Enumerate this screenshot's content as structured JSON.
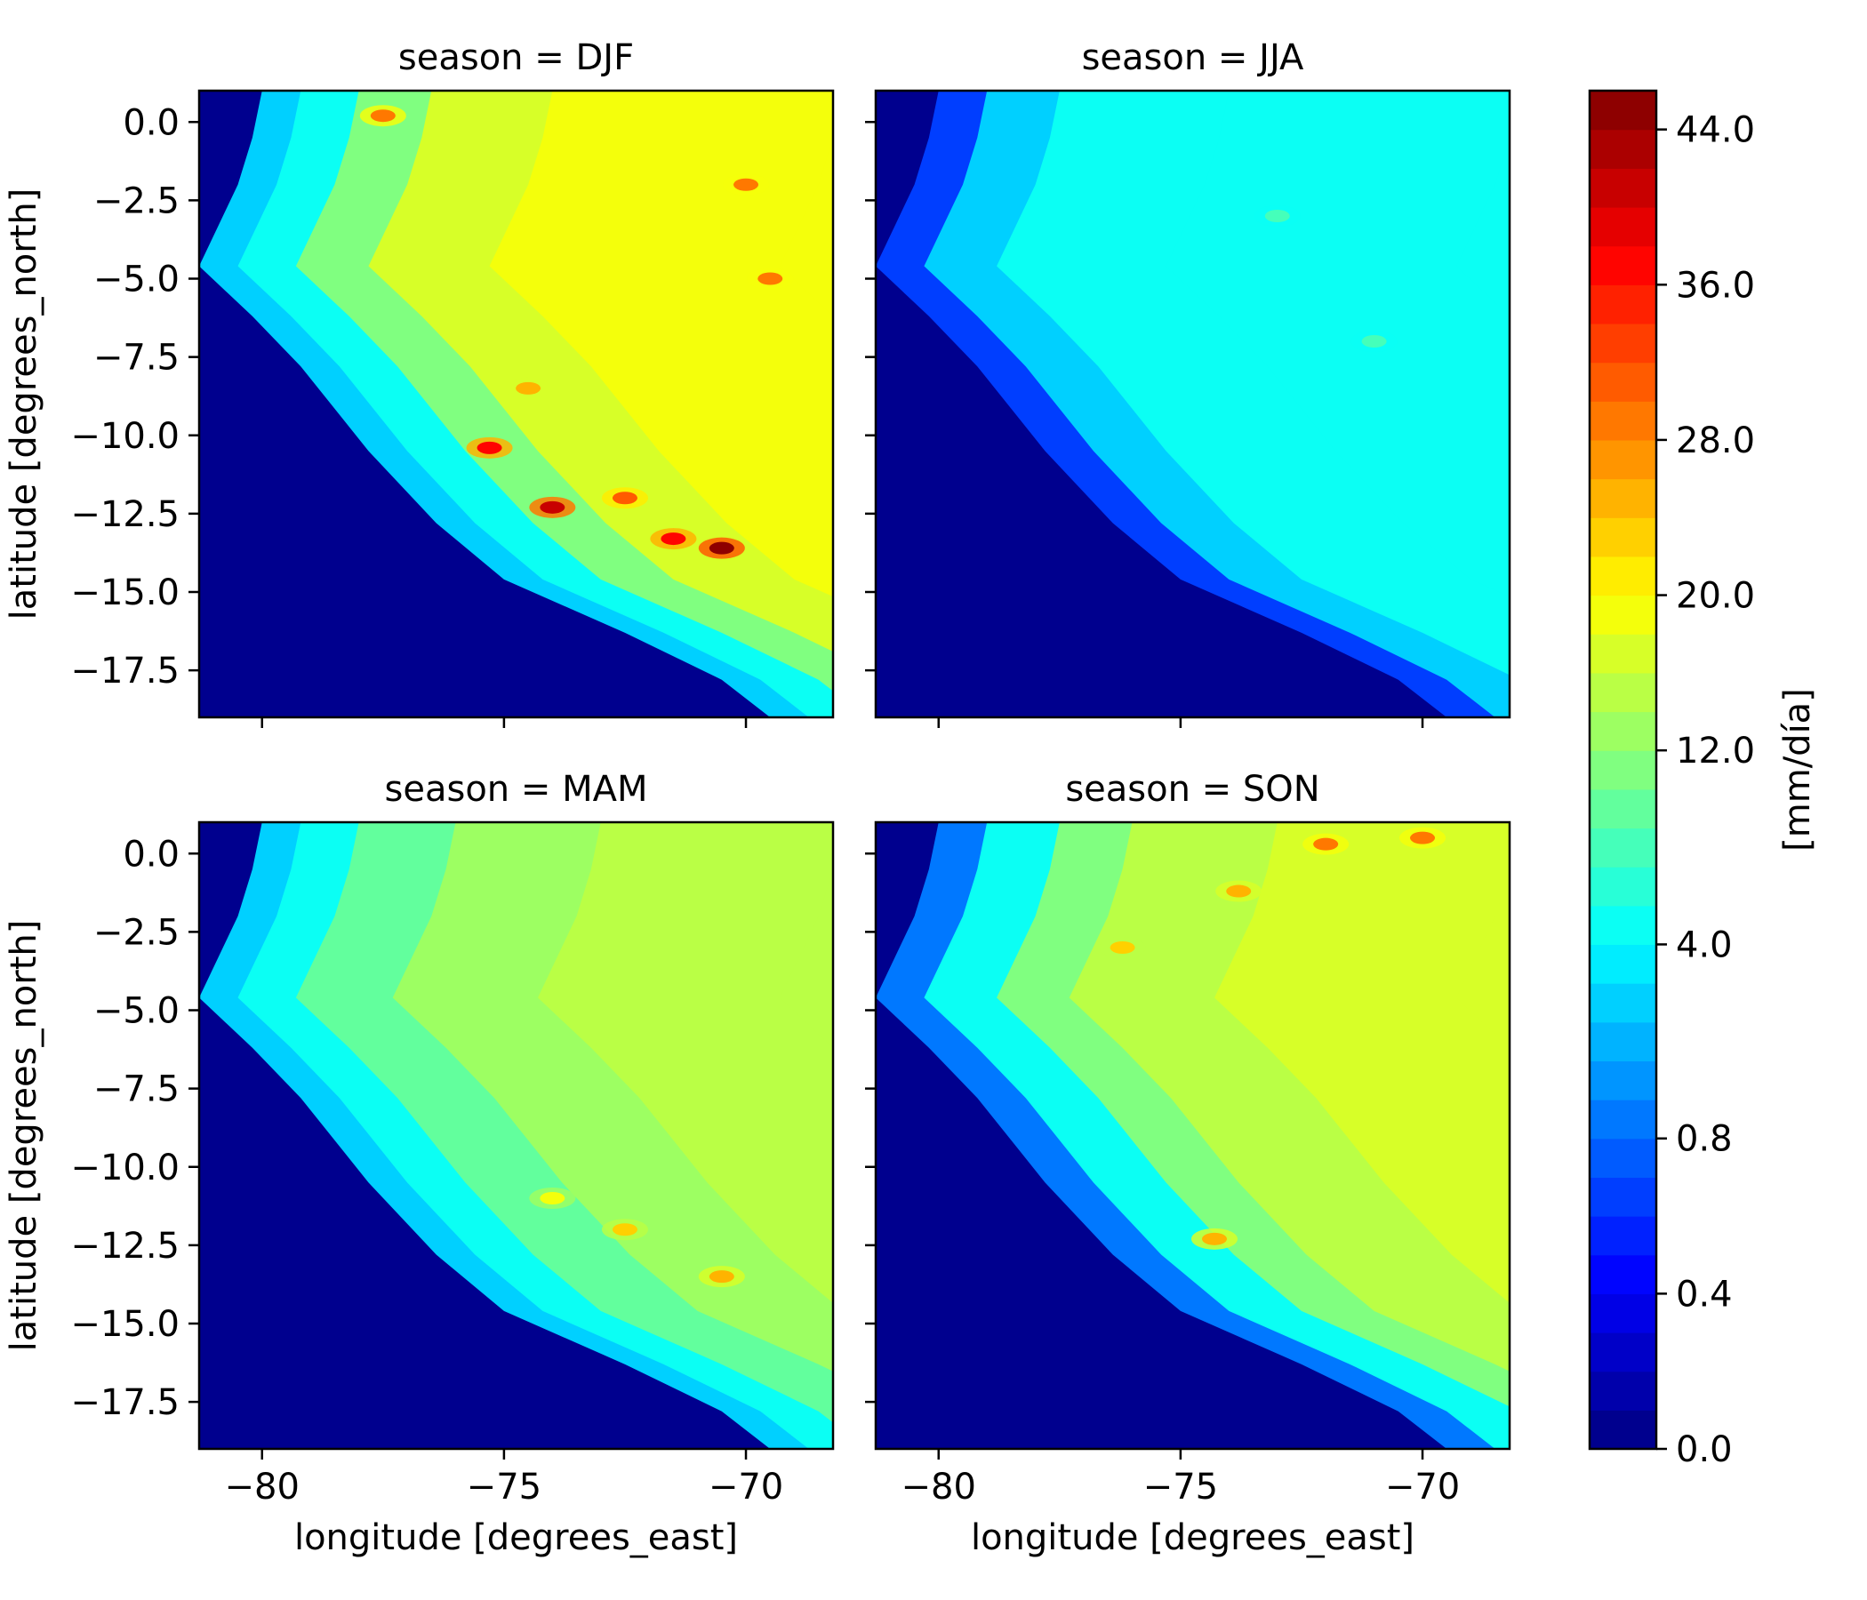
{
  "chart_data": {
    "type": "heatmap",
    "layout": "facet-grid",
    "facet_variable": "season",
    "xlabel": "longitude [degrees_east]",
    "ylabel": "latitude [degrees_north]",
    "xlim": [
      -81.3,
      -68.2
    ],
    "ylim": [
      -19.0,
      1.0
    ],
    "xticks": [
      -80,
      -75,
      -70
    ],
    "xtick_labels": [
      "−80",
      "−75",
      "−70"
    ],
    "yticks": [
      0.0,
      -2.5,
      -5.0,
      -7.5,
      -10.0,
      -12.5,
      -15.0,
      -17.5
    ],
    "ytick_labels": [
      "0.0",
      "−2.5",
      "−5.0",
      "−7.5",
      "−10.0",
      "−12.5",
      "−15.0",
      "−17.5"
    ],
    "coastline": [
      {
        "lon": -80.0,
        "lat": 1.0
      },
      {
        "lon": -80.2,
        "lat": -0.5
      },
      {
        "lon": -80.5,
        "lat": -2.0
      },
      {
        "lon": -81.3,
        "lat": -4.6
      },
      {
        "lon": -80.2,
        "lat": -6.2
      },
      {
        "lon": -79.2,
        "lat": -7.8
      },
      {
        "lon": -77.8,
        "lat": -10.5
      },
      {
        "lon": -76.4,
        "lat": -12.8
      },
      {
        "lon": -75.0,
        "lat": -14.6
      },
      {
        "lon": -72.5,
        "lat": -16.3
      },
      {
        "lon": -70.5,
        "lat": -17.8
      },
      {
        "lon": -69.5,
        "lat": -19.0
      }
    ],
    "panels": [
      {
        "season": "DJF",
        "title": "season = DJF",
        "level_profile": [
          {
            "lon_east_of_coast": 0.0,
            "value": 2.5
          },
          {
            "lon_east_of_coast": 0.8,
            "value": 4.0
          },
          {
            "lon_east_of_coast": 2.0,
            "value": 10.0
          },
          {
            "lon_east_of_coast": 3.5,
            "value": 16.0
          },
          {
            "lon_east_of_coast": 6.0,
            "value": 18.0
          },
          {
            "lon_east_of_coast": 12.0,
            "value": 18.0
          }
        ],
        "hotspots": [
          {
            "lon": -77.5,
            "lat": 0.2,
            "value": 28.0
          },
          {
            "lon": -75.3,
            "lat": -10.4,
            "value": 36.0
          },
          {
            "lon": -74.0,
            "lat": -12.3,
            "value": 40.0
          },
          {
            "lon": -72.5,
            "lat": -12.0,
            "value": 30.0
          },
          {
            "lon": -70.5,
            "lat": -13.6,
            "value": 44.0
          },
          {
            "lon": -71.5,
            "lat": -13.3,
            "value": 36.0
          },
          {
            "lon": -69.5,
            "lat": -5.0,
            "value": 28.0
          },
          {
            "lon": -70.0,
            "lat": -2.0,
            "value": 28.0
          },
          {
            "lon": -74.5,
            "lat": -8.5,
            "value": 24.0
          }
        ]
      },
      {
        "season": "JJA",
        "title": "season = JJA",
        "level_profile": [
          {
            "lon_east_of_coast": 0.0,
            "value": 0.6
          },
          {
            "lon_east_of_coast": 1.0,
            "value": 2.0
          },
          {
            "lon_east_of_coast": 2.5,
            "value": 4.0
          },
          {
            "lon_east_of_coast": 6.0,
            "value": 4.0
          },
          {
            "lon_east_of_coast": 12.0,
            "value": 4.0
          }
        ],
        "hotspots": [
          {
            "lon": -73.0,
            "lat": -3.0,
            "value": 6.0
          },
          {
            "lon": -71.0,
            "lat": -7.0,
            "value": 6.0
          }
        ]
      },
      {
        "season": "MAM",
        "title": "season = MAM",
        "level_profile": [
          {
            "lon_east_of_coast": 0.0,
            "value": 2.0
          },
          {
            "lon_east_of_coast": 0.8,
            "value": 4.0
          },
          {
            "lon_east_of_coast": 2.0,
            "value": 8.0
          },
          {
            "lon_east_of_coast": 4.0,
            "value": 12.0
          },
          {
            "lon_east_of_coast": 7.0,
            "value": 14.0
          },
          {
            "lon_east_of_coast": 12.0,
            "value": 14.0
          }
        ],
        "hotspots": [
          {
            "lon": -72.5,
            "lat": -12.0,
            "value": 22.0
          },
          {
            "lon": -70.5,
            "lat": -13.5,
            "value": 24.0
          },
          {
            "lon": -74.0,
            "lat": -11.0,
            "value": 18.0
          }
        ]
      },
      {
        "season": "SON",
        "title": "season = SON",
        "level_profile": [
          {
            "lon_east_of_coast": 0.0,
            "value": 0.8
          },
          {
            "lon_east_of_coast": 1.0,
            "value": 4.0
          },
          {
            "lon_east_of_coast": 2.5,
            "value": 10.0
          },
          {
            "lon_east_of_coast": 4.0,
            "value": 14.0
          },
          {
            "lon_east_of_coast": 7.0,
            "value": 16.0
          },
          {
            "lon_east_of_coast": 12.0,
            "value": 16.0
          }
        ],
        "hotspots": [
          {
            "lon": -72.0,
            "lat": 0.3,
            "value": 28.0
          },
          {
            "lon": -70.0,
            "lat": 0.5,
            "value": 28.0
          },
          {
            "lon": -73.8,
            "lat": -1.2,
            "value": 24.0
          },
          {
            "lon": -76.2,
            "lat": -3.0,
            "value": 22.0
          },
          {
            "lon": -74.3,
            "lat": -12.3,
            "value": 24.0
          }
        ]
      }
    ],
    "colorbar": {
      "label": "[mm/día]",
      "colormap": "jet",
      "levels": [
        0.0,
        0.1,
        0.2,
        0.3,
        0.4,
        0.5,
        0.6,
        0.7,
        0.8,
        1.0,
        1.5,
        2.0,
        3.0,
        4.0,
        5.0,
        6.0,
        8.0,
        10.0,
        12.0,
        14.0,
        16.0,
        18.0,
        20.0,
        22.0,
        24.0,
        26.0,
        28.0,
        30.0,
        32.0,
        34.0,
        36.0,
        38.0,
        40.0,
        42.0,
        44.0,
        46.0
      ],
      "tick_values": [
        0.0,
        0.4,
        0.8,
        4.0,
        12.0,
        20.0,
        28.0,
        36.0,
        44.0
      ],
      "tick_labels": [
        "0.0",
        "0.4",
        "0.8",
        "4.0",
        "12.0",
        "20.0",
        "28.0",
        "36.0",
        "44.0"
      ],
      "min": 0.0,
      "max": 46.0
    }
  }
}
